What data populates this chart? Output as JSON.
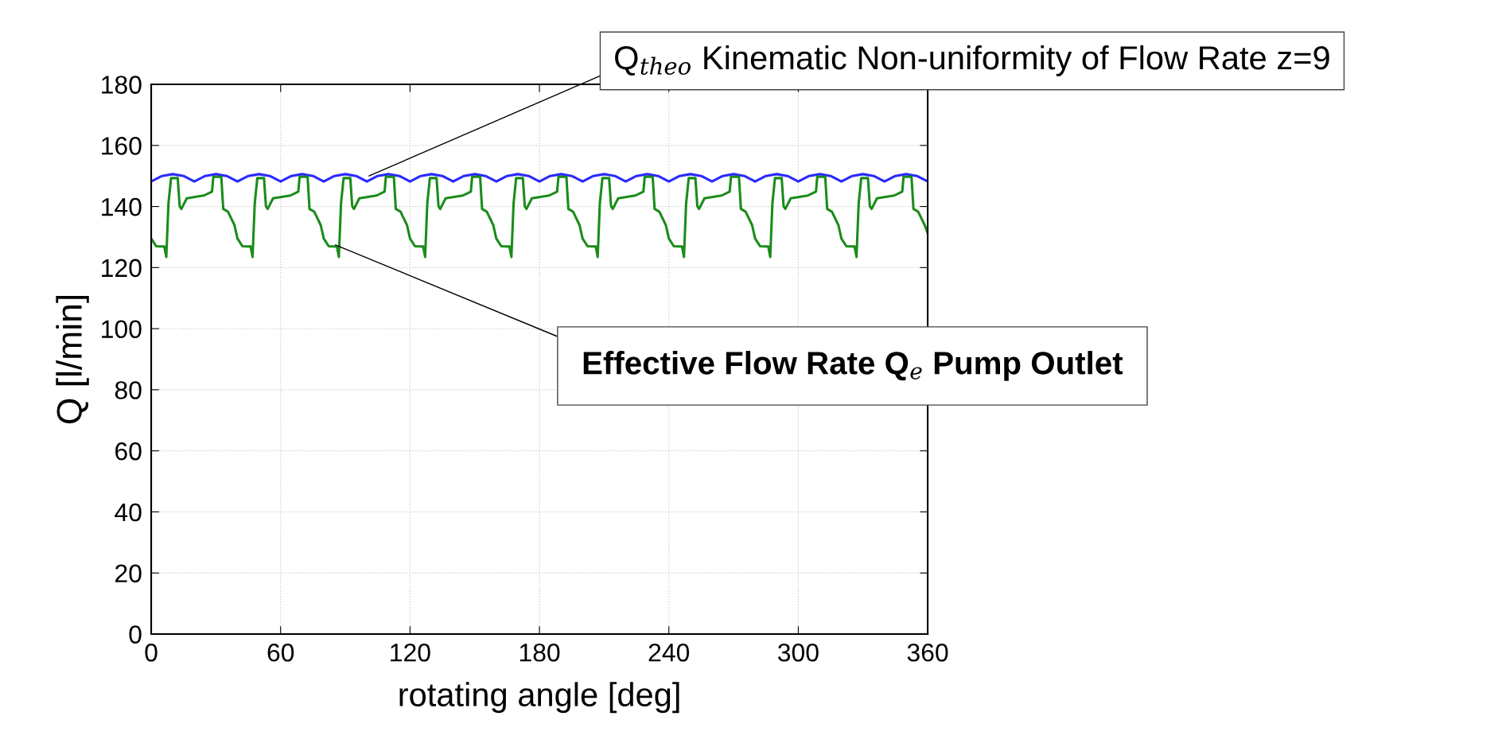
{
  "chart_data": {
    "type": "line",
    "xlabel": "rotating angle [deg]",
    "ylabel": "Q [l/min]",
    "xlim": [
      0,
      360
    ],
    "xticks": [
      0,
      60,
      120,
      180,
      240,
      300,
      360
    ],
    "ylim": [
      0,
      180
    ],
    "yticks": [
      0,
      20,
      40,
      60,
      80,
      100,
      120,
      140,
      160,
      180
    ],
    "grid": true,
    "line_style": "solid",
    "marker": "none",
    "series": [
      {
        "color": "#2a2aff",
        "x": [
          0,
          5,
          10,
          15,
          20,
          25,
          30,
          35,
          40,
          45,
          50,
          55,
          60,
          65,
          70,
          75,
          80,
          85,
          90,
          95,
          100,
          105,
          110,
          115,
          120,
          125,
          130,
          135,
          140,
          145,
          150,
          155,
          160,
          165,
          170,
          175,
          180,
          185,
          190,
          195,
          200,
          205,
          210,
          215,
          220,
          225,
          230,
          235,
          240,
          245,
          250,
          255,
          260,
          265,
          270,
          275,
          280,
          285,
          290,
          295,
          300,
          305,
          310,
          315,
          320,
          325,
          330,
          335,
          340,
          345,
          350,
          355,
          360
        ],
        "values": [
          148.2,
          150,
          150.6,
          150,
          148.2,
          150,
          150.6,
          150,
          148.2,
          150,
          150.6,
          150,
          148.2,
          150,
          150.6,
          150,
          148.2,
          150,
          150.6,
          150,
          148.2,
          150,
          150.6,
          150,
          148.2,
          150,
          150.6,
          150,
          148.2,
          150,
          150.6,
          150,
          148.2,
          150,
          150.6,
          150,
          148.2,
          150,
          150.6,
          150,
          148.2,
          150,
          150.6,
          150,
          148.2,
          150,
          150.6,
          150,
          148.2,
          150,
          150.6,
          150,
          148.2,
          150,
          150.6,
          150,
          148.2,
          150,
          150.6,
          150,
          148.2,
          150,
          150.6,
          150,
          148.2,
          150,
          150.6,
          150,
          148.2,
          150,
          150.6,
          150,
          148.2
        ]
      },
      {
        "color": "#1a8c1a",
        "x": [
          0,
          2.3,
          6.1,
          7,
          8,
          9.2,
          12.3,
          13.2,
          14,
          16.5,
          24.5,
          28.2,
          28.8,
          32.5,
          33.4,
          35.6,
          38.6,
          40,
          42.3,
          46.1,
          47,
          48,
          49.2,
          52.3,
          53.2,
          54,
          56.5,
          64.5,
          68.2,
          68.8,
          72.5,
          73.4,
          75.6,
          78.6,
          80,
          82.3,
          86.1,
          87,
          88,
          89.2,
          92.3,
          93.2,
          94,
          96.5,
          104.5,
          108.2,
          108.8,
          112.5,
          113.4,
          115.6,
          118.6,
          120,
          122.3,
          126.1,
          127,
          128,
          129.2,
          132.3,
          133.2,
          134,
          136.5,
          144.5,
          148.2,
          148.8,
          152.5,
          153.4,
          155.6,
          158.6,
          160,
          162.3,
          166.1,
          167,
          168,
          169.2,
          172.3,
          173.2,
          174,
          176.5,
          184.5,
          188.2,
          188.8,
          192.5,
          193.4,
          195.6,
          198.6,
          200,
          202.3,
          206.1,
          207,
          208,
          209.2,
          212.3,
          213.2,
          214,
          216.5,
          224.5,
          228.2,
          228.8,
          232.5,
          233.4,
          235.6,
          238.6,
          240,
          242.3,
          246.1,
          247,
          248,
          249.2,
          252.3,
          253.2,
          254,
          256.5,
          264.5,
          268.2,
          268.8,
          272.5,
          273.4,
          275.6,
          278.6,
          280,
          282.3,
          286.1,
          287,
          288,
          289.2,
          292.3,
          293.2,
          294,
          296.5,
          304.5,
          308.2,
          308.8,
          312.5,
          313.4,
          315.6,
          318.6,
          320,
          322.3,
          326.1,
          327,
          328,
          329.2,
          332.3,
          333.2,
          334,
          336.5,
          344.5,
          348.2,
          348.8,
          352.5,
          353.4,
          355.6,
          358.6,
          360
        ],
        "values": [
          129.5,
          127,
          126.9,
          123.5,
          141,
          149.3,
          149.3,
          140.1,
          139.2,
          142.7,
          143.6,
          144.9,
          149.7,
          149.7,
          139.2,
          138.3,
          133.9,
          129.5,
          127,
          126.9,
          123.5,
          141,
          149.3,
          149.3,
          140.1,
          139.2,
          142.7,
          143.6,
          144.9,
          149.7,
          149.7,
          139.2,
          138.3,
          133.9,
          129.5,
          127,
          126.9,
          123.5,
          141,
          149.3,
          149.3,
          140.1,
          139.2,
          142.7,
          143.6,
          144.9,
          149.7,
          149.7,
          139.2,
          138.3,
          133.9,
          129.5,
          127,
          126.9,
          123.5,
          141,
          149.3,
          149.3,
          140.1,
          139.2,
          142.7,
          143.6,
          144.9,
          149.7,
          149.7,
          139.2,
          138.3,
          133.9,
          129.5,
          127,
          126.9,
          123.5,
          141,
          149.3,
          149.3,
          140.1,
          139.2,
          142.7,
          143.6,
          144.9,
          149.7,
          149.7,
          139.2,
          138.3,
          133.9,
          129.5,
          127,
          126.9,
          123.5,
          141,
          149.3,
          149.3,
          140.1,
          139.2,
          142.7,
          143.6,
          144.9,
          149.7,
          149.7,
          139.2,
          138.3,
          133.9,
          129.5,
          127,
          126.9,
          123.5,
          141,
          149.3,
          149.3,
          140.1,
          139.2,
          142.7,
          143.6,
          144.9,
          149.7,
          149.7,
          139.2,
          138.3,
          133.9,
          129.5,
          127,
          126.9,
          123.5,
          141,
          149.3,
          149.3,
          140.1,
          139.2,
          142.7,
          143.6,
          144.9,
          149.7,
          149.7,
          139.2,
          138.3,
          133.9,
          129.5,
          127,
          126.9,
          123.5,
          141,
          149.3,
          149.3,
          140.1,
          139.2,
          142.7,
          143.6,
          144.9,
          149.7,
          149.7,
          139.2,
          138.3,
          133.9,
          131.3
        ]
      }
    ],
    "annotations": [
      {
        "text": "Q$_{theo}$ Kinematic Non-uniformity of Flow Rate z=9",
        "x": 101,
        "y": 150
      },
      {
        "text": "Effective Flow Rate Q$_{e}$ Pump Outlet",
        "x": 85.4,
        "y": 127.4
      }
    ]
  }
}
